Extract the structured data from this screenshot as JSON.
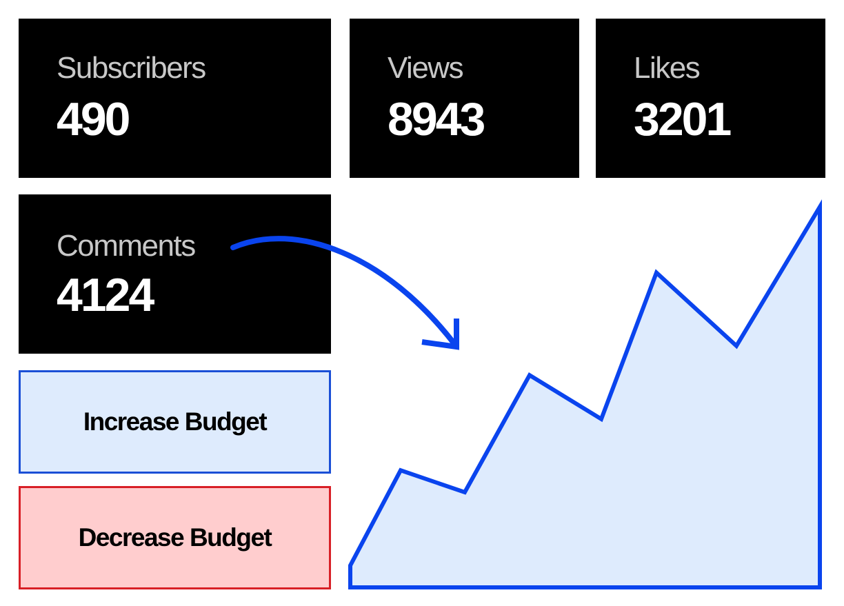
{
  "stats": [
    {
      "label": "Subscribers",
      "value": "490"
    },
    {
      "label": "Views",
      "value": "8943"
    },
    {
      "label": "Likes",
      "value": "3201"
    },
    {
      "label": "Comments",
      "value": "4124"
    }
  ],
  "actions": {
    "increase_label": "Increase Budget",
    "decrease_label": "Decrease Budget"
  },
  "colors": {
    "card_bg": "#000000",
    "label_text": "#c8c8c8",
    "value_text": "#ffffff",
    "accent_blue": "#0a44ee",
    "increase_fill": "#deebfd",
    "increase_border": "#1a4fd6",
    "decrease_fill": "#ffcdce",
    "decrease_border": "#d81f26"
  },
  "icons": {
    "trend_arrow": "curved-arrow-icon"
  },
  "chart_data": {
    "type": "area",
    "values": [
      3,
      16,
      13,
      29,
      23,
      43,
      33,
      52,
      0
    ],
    "ylim": [
      0,
      52
    ],
    "grid": false,
    "axes": false
  }
}
